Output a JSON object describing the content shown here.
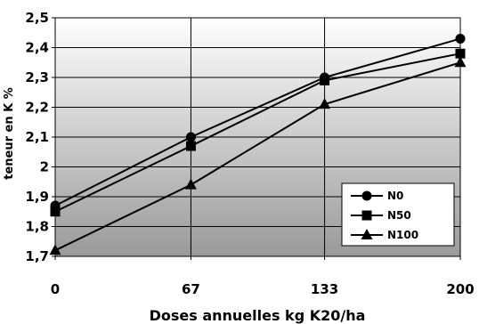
{
  "chart_data": {
    "type": "line",
    "title": "",
    "xlabel": "Doses annuelles kg K20/ha",
    "ylabel": "teneur en K %",
    "categories": [
      "0",
      "67",
      "133",
      "200"
    ],
    "x": [
      0,
      67,
      133,
      200
    ],
    "ylim": [
      1.7,
      2.5
    ],
    "yticks": [
      "1,7",
      "1,8",
      "1,9",
      "2",
      "2,1",
      "2,2",
      "2,3",
      "2,4",
      "2,5"
    ],
    "grid": true,
    "legend_position": "bottom-right",
    "series": [
      {
        "name": "N0",
        "marker": "circle",
        "values": [
          1.87,
          2.1,
          2.3,
          2.43
        ]
      },
      {
        "name": "N50",
        "marker": "square",
        "values": [
          1.85,
          2.07,
          2.29,
          2.38
        ]
      },
      {
        "name": "N100",
        "marker": "triangle",
        "values": [
          1.72,
          1.94,
          2.21,
          2.35
        ]
      }
    ],
    "colors": {
      "line": "#000000",
      "plot_top": "#ffffff",
      "plot_bottom": "#9a9a9a"
    }
  }
}
